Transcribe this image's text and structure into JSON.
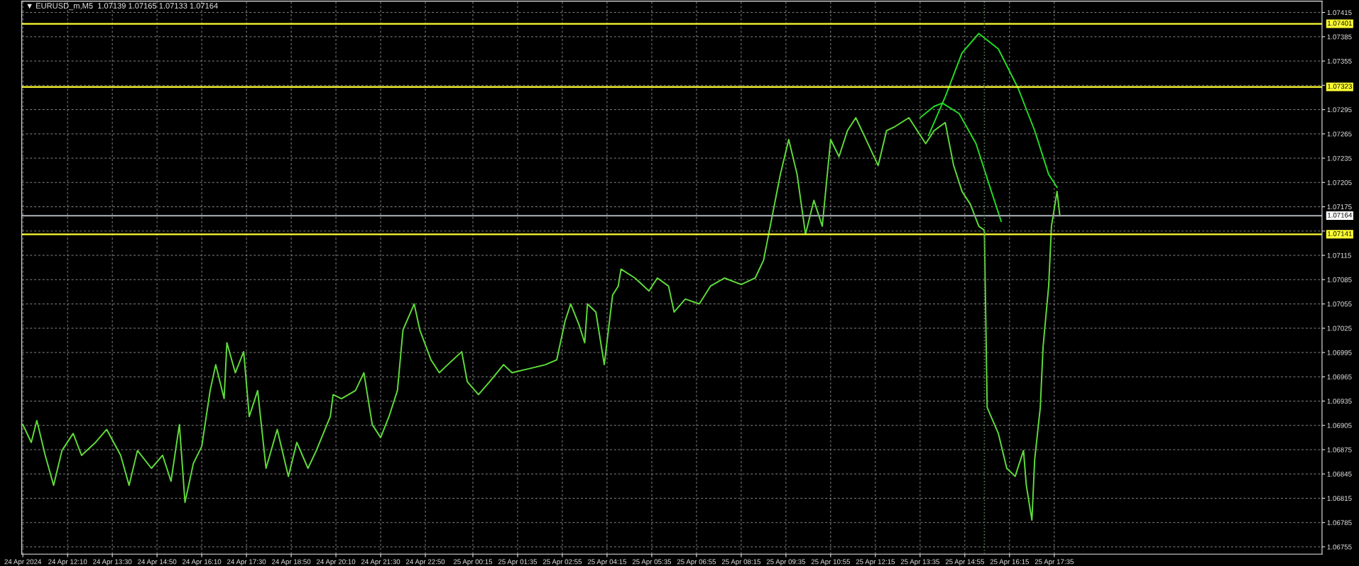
{
  "chart_data": {
    "type": "line",
    "title": "▼ EURUSD_m,M5  1.07139 1.07165 1.07133 1.07164",
    "series": [
      {
        "color": "#5fdc3a",
        "x": [
          "2024-04-24T10:50",
          "2024-04-24T11:05",
          "2024-04-24T11:15",
          "2024-04-24T11:30",
          "2024-04-24T11:45",
          "2024-04-24T12:00",
          "2024-04-24T12:20",
          "2024-04-24T12:35",
          "2024-04-24T13:00",
          "2024-04-24T13:20",
          "2024-04-24T13:45",
          "2024-04-24T14:00",
          "2024-04-24T14:15",
          "2024-04-24T14:40",
          "2024-04-24T15:00",
          "2024-04-24T15:15",
          "2024-04-24T15:30",
          "2024-04-24T15:40",
          "2024-04-24T15:55",
          "2024-04-24T16:10",
          "2024-04-24T16:25",
          "2024-04-24T16:35",
          "2024-04-24T16:50",
          "2024-04-24T16:55",
          "2024-04-24T17:10",
          "2024-04-24T17:25",
          "2024-04-24T17:35",
          "2024-04-24T17:50",
          "2024-04-24T18:05",
          "2024-04-24T18:25",
          "2024-04-24T18:45",
          "2024-04-24T19:00",
          "2024-04-24T19:20",
          "2024-04-24T19:35",
          "2024-04-24T20:00",
          "2024-04-24T20:05",
          "2024-04-24T20:20",
          "2024-04-24T20:45",
          "2024-04-24T21:00",
          "2024-04-24T21:15",
          "2024-04-24T21:30",
          "2024-04-24T21:45",
          "2024-04-24T22:00",
          "2024-04-24T22:10",
          "2024-04-24T22:30",
          "2024-04-24T22:40",
          "2024-04-24T23:00",
          "2024-04-24T23:15",
          "2024-04-24T23:30",
          "2024-04-24T23:55",
          "2024-04-25T00:05",
          "2024-04-25T00:25",
          "2024-04-25T00:45",
          "2024-04-25T01:10",
          "2024-04-25T01:25",
          "2024-04-25T01:55",
          "2024-04-25T02:25",
          "2024-04-25T02:45",
          "2024-04-25T03:00",
          "2024-04-25T03:10",
          "2024-04-25T03:25",
          "2024-04-25T03:35",
          "2024-04-25T03:40",
          "2024-04-25T03:55",
          "2024-04-25T04:10",
          "2024-04-25T04:25",
          "2024-04-25T04:35",
          "2024-04-25T04:40",
          "2024-04-25T05:05",
          "2024-04-25T05:30",
          "2024-04-25T05:45",
          "2024-04-25T06:05",
          "2024-04-25T06:15",
          "2024-04-25T06:35",
          "2024-04-25T07:00",
          "2024-04-25T07:20",
          "2024-04-25T07:45",
          "2024-04-25T08:15",
          "2024-04-25T08:40",
          "2024-04-25T08:55",
          "2024-04-25T09:10",
          "2024-04-25T09:25",
          "2024-04-25T09:40",
          "2024-04-25T09:55",
          "2024-04-25T10:10",
          "2024-04-25T10:25",
          "2024-04-25T10:40",
          "2024-04-25T10:55",
          "2024-04-25T11:10",
          "2024-04-25T11:25",
          "2024-04-25T11:40",
          "2024-04-25T11:55",
          "2024-04-25T12:20",
          "2024-04-25T12:35",
          "2024-04-25T12:50",
          "2024-04-25T13:15",
          "2024-04-25T13:30",
          "2024-04-25T13:45",
          "2024-04-25T14:00",
          "2024-04-25T14:20",
          "2024-04-25T14:35",
          "2024-04-25T14:50",
          "2024-04-25T15:05",
          "2024-04-25T15:20",
          "2024-04-25T15:30",
          "2024-04-25T15:35",
          "2024-04-25T15:55",
          "2024-04-25T16:10",
          "2024-04-25T16:25",
          "2024-04-25T16:40",
          "2024-04-25T16:45",
          "2024-04-25T16:55",
          "2024-04-25T17:00",
          "2024-04-25T17:10",
          "2024-04-25T17:15",
          "2024-04-25T17:25",
          "2024-04-25T17:30",
          "2024-04-25T17:40",
          "2024-04-25T17:45"
        ],
        "values": [
          1.06906,
          1.06884,
          1.06911,
          1.06868,
          1.06831,
          1.06874,
          1.06895,
          1.06868,
          1.06884,
          1.069,
          1.06868,
          1.06831,
          1.06874,
          1.06852,
          1.06868,
          1.06836,
          1.06906,
          1.0681,
          1.06858,
          1.06879,
          1.06948,
          1.0698,
          1.06938,
          1.07007,
          1.0697,
          1.06996,
          1.06916,
          1.06948,
          1.06852,
          1.069,
          1.06842,
          1.06884,
          1.06852,
          1.06874,
          1.06916,
          1.06943,
          1.06938,
          1.06948,
          1.0697,
          1.06906,
          1.0689,
          1.06916,
          1.06948,
          1.07023,
          1.07055,
          1.07023,
          1.06986,
          1.0697,
          1.0698,
          1.06996,
          1.06959,
          1.06943,
          1.06959,
          1.0698,
          1.0697,
          1.06975,
          1.0698,
          1.06986,
          1.07034,
          1.07055,
          1.07029,
          1.07007,
          1.07055,
          1.07045,
          1.0698,
          1.07066,
          1.07077,
          1.07098,
          1.07087,
          1.07071,
          1.07087,
          1.07077,
          1.07045,
          1.07061,
          1.07055,
          1.07077,
          1.07087,
          1.07079,
          1.07087,
          1.07109,
          1.07162,
          1.07215,
          1.07258,
          1.07215,
          1.07141,
          1.07183,
          1.07151,
          1.07258,
          1.07237,
          1.07269,
          1.07285,
          1.07263,
          1.07226,
          1.07269,
          1.07274,
          1.07285,
          1.07269,
          1.07253,
          1.07269,
          1.07279,
          1.07226,
          1.07194,
          1.07178,
          1.07151,
          1.07146,
          1.06927,
          1.06895,
          1.06852,
          1.06842,
          1.06874,
          1.06831,
          1.06788,
          1.06863,
          1.06927,
          1.07002,
          1.07077,
          1.07151,
          1.07194,
          1.07164
        ]
      },
      {
        "color": "#22dd22",
        "x": [
          "2024-04-25T13:50",
          "2024-04-25T14:20",
          "2024-04-25T14:50",
          "2024-04-25T15:20",
          "2024-04-25T15:55",
          "2024-04-25T16:30",
          "2024-04-25T17:00",
          "2024-04-25T17:25",
          "2024-04-25T17:40"
        ],
        "values": [
          1.07263,
          1.07311,
          1.07365,
          1.07389,
          1.0737,
          1.07322,
          1.07269,
          1.07215,
          1.07199
        ]
      },
      {
        "color": "#22dd22",
        "x": [
          "2024-04-25T13:35",
          "2024-04-25T14:00",
          "2024-04-25T14:15",
          "2024-04-25T14:45",
          "2024-04-25T15:15",
          "2024-04-25T15:35",
          "2024-04-25T16:00"
        ],
        "values": [
          1.07285,
          1.07299,
          1.07303,
          1.0729,
          1.07253,
          1.0721,
          1.07157
        ]
      }
    ],
    "xlim": [
      "2024-04-24T10:48",
      "2024-04-26T01:34"
    ],
    "xticks": [
      {
        "value": "2024-04-24T10:50",
        "label": "24 Apr 2024"
      },
      {
        "value": "2024-04-24T12:10",
        "label": "24 Apr 12:10"
      },
      {
        "value": "2024-04-24T13:30",
        "label": "24 Apr 13:30"
      },
      {
        "value": "2024-04-24T14:50",
        "label": "24 Apr 14:50"
      },
      {
        "value": "2024-04-24T16:10",
        "label": "24 Apr 16:10"
      },
      {
        "value": "2024-04-24T17:30",
        "label": "24 Apr 17:30"
      },
      {
        "value": "2024-04-24T18:50",
        "label": "24 Apr 18:50"
      },
      {
        "value": "2024-04-24T20:10",
        "label": "24 Apr 20:10"
      },
      {
        "value": "2024-04-24T21:30",
        "label": "24 Apr 21:30"
      },
      {
        "value": "2024-04-24T22:50",
        "label": "24 Apr 22:50"
      },
      {
        "value": "2024-04-25T00:15",
        "label": "25 Apr 00:15"
      },
      {
        "value": "2024-04-25T01:35",
        "label": "25 Apr 01:35"
      },
      {
        "value": "2024-04-25T02:55",
        "label": "25 Apr 02:55"
      },
      {
        "value": "2024-04-25T04:15",
        "label": "25 Apr 04:15"
      },
      {
        "value": "2024-04-25T05:35",
        "label": "25 Apr 05:35"
      },
      {
        "value": "2024-04-25T06:55",
        "label": "25 Apr 06:55"
      },
      {
        "value": "2024-04-25T08:15",
        "label": "25 Apr 08:15"
      },
      {
        "value": "2024-04-25T09:35",
        "label": "25 Apr 09:35"
      },
      {
        "value": "2024-04-25T10:55",
        "label": "25 Apr 10:55"
      },
      {
        "value": "2024-04-25T12:15",
        "label": "25 Apr 12:15"
      },
      {
        "value": "2024-04-25T13:35",
        "label": "25 Apr 13:35"
      },
      {
        "value": "2024-04-25T14:55",
        "label": "25 Apr 14:55"
      },
      {
        "value": "2024-04-25T16:15",
        "label": "25 Apr 16:15"
      },
      {
        "value": "2024-04-25T17:35",
        "label": "25 Apr 17:35"
      }
    ],
    "ylim": [
      1.06746,
      1.07429
    ],
    "yticks": [
      1.06755,
      1.06785,
      1.06815,
      1.06845,
      1.06875,
      1.06905,
      1.06935,
      1.06965,
      1.06995,
      1.07025,
      1.07055,
      1.07085,
      1.07115,
      {
        "value": 1.07145,
        "label": null
      },
      1.07175,
      1.07205,
      1.07235,
      1.07265,
      1.07295,
      {
        "value": 1.07325,
        "label": null
      },
      1.07355,
      1.07385,
      1.07415
    ],
    "ref_lines": [
      {
        "axis": "y",
        "value": 1.07401,
        "label": "1.07401",
        "color": "#ffff33"
      },
      {
        "axis": "y",
        "value": 1.07323,
        "label": "1.07323",
        "color": "#ffff33"
      },
      {
        "axis": "y",
        "value": 1.07164,
        "label": "1.07164",
        "color": "#9aa0a6"
      },
      {
        "axis": "y",
        "value": 1.07141,
        "label": "1.07141",
        "color": "#ffff33"
      },
      {
        "axis": "x",
        "value": "2024-04-25T15:30",
        "color": "#5a7a5a",
        "line_style": "dotted"
      }
    ],
    "grid": true
  }
}
